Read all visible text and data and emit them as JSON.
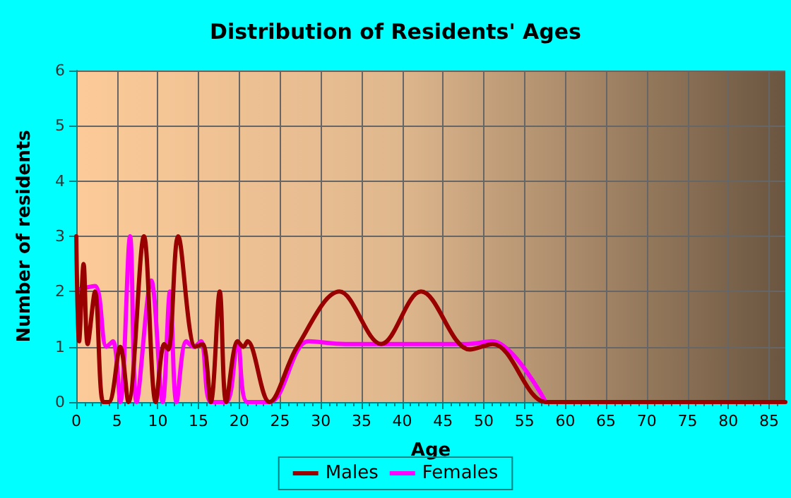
{
  "chart_data": {
    "type": "line",
    "title": "Distribution of Residents' Ages",
    "xlabel": "Age",
    "ylabel": "Number of residents",
    "xlim": [
      0,
      87
    ],
    "xticks": [
      0,
      5,
      10,
      15,
      20,
      25,
      30,
      35,
      40,
      45,
      50,
      55,
      60,
      65,
      70,
      75,
      80,
      85
    ],
    "ylim": [
      0,
      6
    ],
    "yticks": [
      0,
      1,
      2,
      3,
      4,
      5,
      6
    ],
    "grid": true,
    "legend": "bottom",
    "marker": "none",
    "line_style": "solid",
    "series": [
      {
        "name": "Males",
        "color": "#990000",
        "x": [
          0,
          0.35,
          0.9,
          1.4,
          2.3,
          3.3,
          4,
          5.4,
          6.4,
          8.3,
          9.75,
          10.8,
          11.3,
          12.5,
          14.6,
          15.5,
          16.5,
          17.6,
          18.4,
          19.8,
          20.5,
          21,
          23.7,
          27.1,
          32.3,
          37.4,
          42.3,
          48.3,
          51.1,
          57.6,
          60,
          70,
          80,
          87
        ],
        "values": [
          3,
          1.1,
          2.5,
          1.05,
          2,
          0,
          0,
          1,
          0,
          3,
          0,
          1.05,
          0.95,
          3,
          1,
          1.05,
          0,
          2,
          0,
          1.1,
          1,
          1.1,
          0,
          1,
          2,
          1.05,
          2,
          0.95,
          1.05,
          0,
          0,
          0,
          0,
          0
        ]
      },
      {
        "name": "Females",
        "color": "#ff00ff",
        "x": [
          0.5,
          2.3,
          3.7,
          4.5,
          5.4,
          6.6,
          7.4,
          9.2,
          10.6,
          11.5,
          12.3,
          13.5,
          14.4,
          15.3,
          16.5,
          18.4,
          19.8,
          21,
          23.7,
          28.5,
          33,
          40,
          48,
          51,
          57.6
        ],
        "values": [
          2.05,
          2.1,
          1,
          1.1,
          0,
          3,
          0,
          2.2,
          0,
          2,
          0,
          1.1,
          1,
          1.1,
          0,
          0,
          1.1,
          0,
          0,
          1.1,
          1.05,
          1.05,
          1.05,
          1.1,
          0
        ]
      }
    ]
  }
}
